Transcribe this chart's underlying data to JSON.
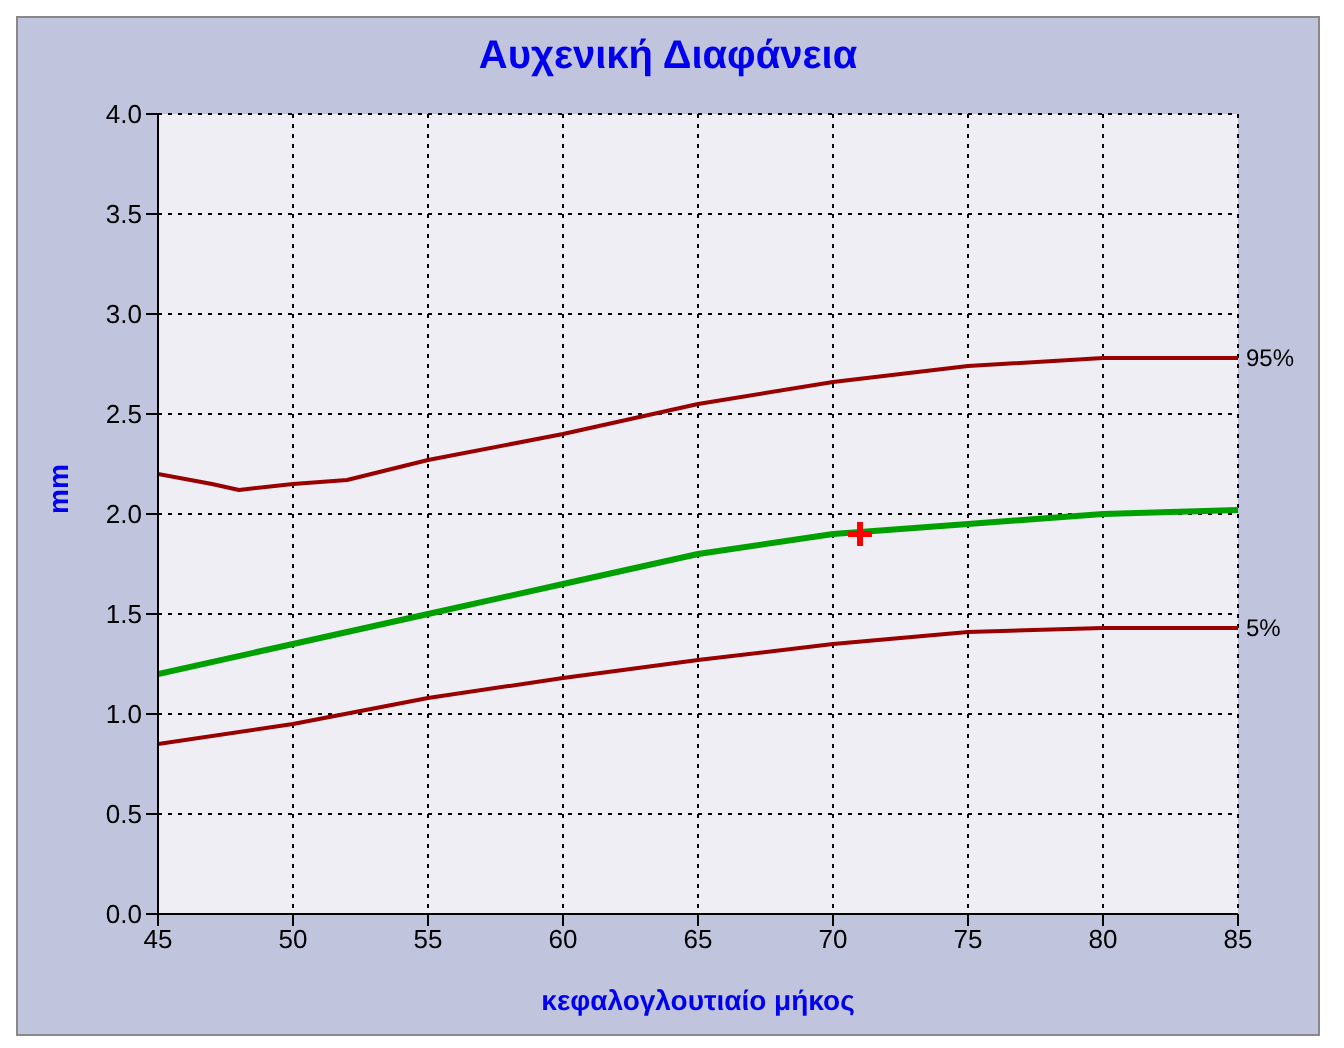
{
  "chart_data": {
    "type": "line",
    "title": "Αυχενική Διαφάνεια",
    "xlabel": "κεφαλογλουτιαίο μήκος",
    "ylabel": "mm",
    "xlim": [
      45,
      85
    ],
    "xticks": [
      45,
      50,
      55,
      60,
      65,
      70,
      75,
      80,
      85
    ],
    "ylim": [
      0,
      4
    ],
    "yticks": [
      {
        "value": 0,
        "label": "0.0"
      },
      {
        "value": 0.5,
        "label": "0.5"
      },
      {
        "value": 1,
        "label": "1.0"
      },
      {
        "value": 1.5,
        "label": "1.5"
      },
      {
        "value": 2,
        "label": "2.0"
      },
      {
        "value": 2.5,
        "label": "2.5"
      },
      {
        "value": 3,
        "label": "3.0"
      },
      {
        "value": 3.5,
        "label": "3.5"
      },
      {
        "value": 4,
        "label": "4.0"
      }
    ],
    "grid": true,
    "legend": false,
    "marker": "none",
    "line_style": "solid",
    "series": [
      {
        "name": "95%",
        "color": "#990000",
        "x": [
          45,
          47,
          48,
          50,
          52,
          55,
          60,
          65,
          70,
          75,
          80,
          85
        ],
        "values": [
          2.2,
          2.15,
          2.12,
          2.15,
          2.17,
          2.27,
          2.4,
          2.55,
          2.66,
          2.74,
          2.78,
          2.78
        ]
      },
      {
        "color": "#00a000",
        "x": [
          45,
          50,
          55,
          60,
          65,
          70,
          75,
          80,
          85
        ],
        "values": [
          1.2,
          1.35,
          1.5,
          1.65,
          1.8,
          1.9,
          1.95,
          2.0,
          2.02
        ]
      },
      {
        "name": "5%",
        "color": "#990000",
        "x": [
          45,
          50,
          55,
          60,
          65,
          70,
          75,
          80,
          85
        ],
        "values": [
          0.85,
          0.95,
          1.08,
          1.18,
          1.27,
          1.35,
          1.41,
          1.43,
          1.43
        ]
      },
      {
        "type": "scatter",
        "marker": "cross",
        "color": "#ff0000",
        "x": [
          71
        ],
        "values": [
          1.9
        ]
      }
    ]
  }
}
